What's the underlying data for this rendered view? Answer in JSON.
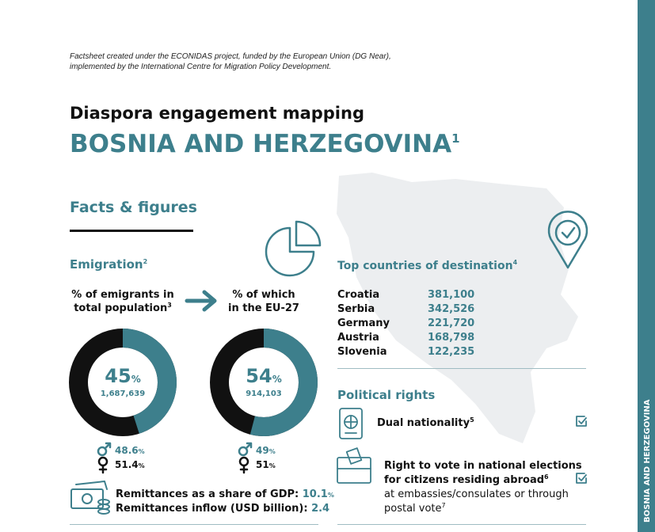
{
  "note_lines": [
    "Factsheet created under the ECONIDAS project, funded by the European Union (DG Near),",
    "implemented by the International Centre for Migration Policy Development."
  ],
  "header": {
    "kicker": "Diaspora engagement mapping",
    "title": "BOSNIA AND HERZEGOVINA",
    "title_sup": "1"
  },
  "side_tab": "BOSNIA AND HERZEGOVINA",
  "facts_heading": "Facts & figures",
  "emigration": {
    "heading": "Emigration",
    "heading_sup": "2",
    "panels": [
      {
        "label_lines": [
          "% of emigrants in",
          "total population"
        ],
        "label_sup": "3",
        "percent": 45,
        "unit": "%",
        "count": "1,687,639",
        "male": 48.6,
        "female": 51.4
      },
      {
        "label_lines": [
          "% of which",
          "in the EU-27"
        ],
        "label_sup": "",
        "percent": 54,
        "unit": "%",
        "count": "914,103",
        "male": 49,
        "female": 51
      }
    ]
  },
  "remittances": [
    {
      "label": "Remittances as a share of GDP:",
      "value": 10.1,
      "unit": "%"
    },
    {
      "label": "Remittances inflow (USD billion):",
      "value": 2.4
    }
  ],
  "destinations": {
    "heading": "Top countries of destination",
    "heading_sup": "4",
    "rows": [
      [
        "Croatia",
        "381,100"
      ],
      [
        "Serbia",
        "342,526"
      ],
      [
        "Germany",
        "221,720"
      ],
      [
        "Austria",
        "168,798"
      ],
      [
        "Slovenia",
        "122,235"
      ]
    ]
  },
  "political": {
    "heading": "Political rights",
    "items": [
      {
        "title_lines": [
          "Dual nationality"
        ],
        "sup": "5"
      },
      {
        "title_lines": [
          "Right to vote in national elections",
          "for citizens residing abroad"
        ],
        "sup": "6",
        "detail_lines": [
          "at embassies/consulates or through",
          "postal vote"
        ],
        "detail_sup": "7"
      }
    ]
  }
}
